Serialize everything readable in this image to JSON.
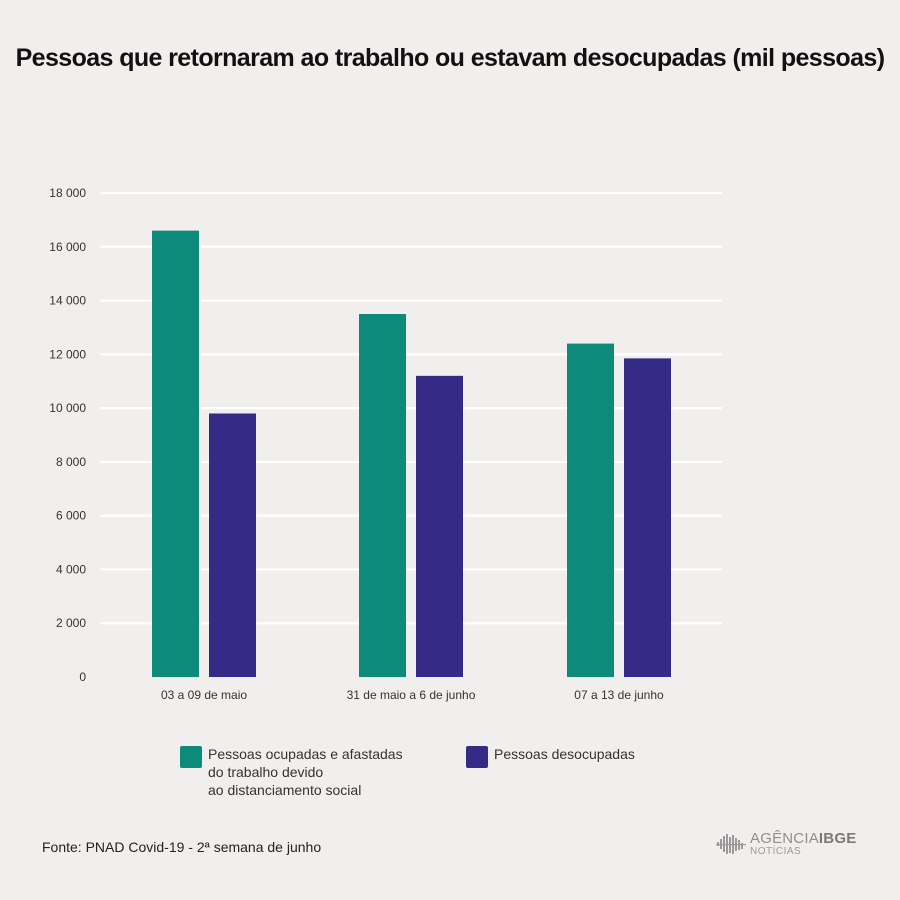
{
  "title": "Pessoas que retornaram ao trabalho ou estavam desocupadas (mil pessoas)",
  "chart_data": {
    "type": "bar",
    "title": "Pessoas que retornaram ao trabalho ou estavam desocupadas (mil pessoas)",
    "xlabel": "",
    "ylabel": "",
    "ylim": [
      0,
      18000
    ],
    "yticks": [
      0,
      2000,
      4000,
      6000,
      8000,
      10000,
      12000,
      14000,
      16000,
      18000
    ],
    "ytick_labels": [
      "0",
      "2 000",
      "4 000",
      "6 000",
      "8 000",
      "10 000",
      "12 000",
      "14 000",
      "16 000",
      "18 000"
    ],
    "grid": true,
    "legend_position": "bottom",
    "categories": [
      "03 a 09 de maio",
      "31 de maio a 6 de junho",
      "07 a 13 de junho"
    ],
    "series": [
      {
        "name": "Pessoas ocupadas e afastadas do trabalho devido ao distanciamento social",
        "color": "#0e8a7b",
        "values": [
          16600,
          13500,
          12400
        ]
      },
      {
        "name": "Pessoas desocupadas",
        "color": "#352a85",
        "values": [
          9800,
          11200,
          11850
        ]
      }
    ]
  },
  "legend": {
    "items": [
      {
        "label": "Pessoas ocupadas e afastadas\ndo trabalho devido\nao distanciamento social",
        "color": "#0e8a7b"
      },
      {
        "label": "Pessoas desocupadas",
        "color": "#352a85"
      }
    ]
  },
  "source": "Fonte: PNAD Covid-19 - 2ª semana de junho",
  "logo": {
    "name_prefix": "AGÊNCIA",
    "name_brand": "IBGE",
    "subtitle": "NOTÍCIAS"
  }
}
